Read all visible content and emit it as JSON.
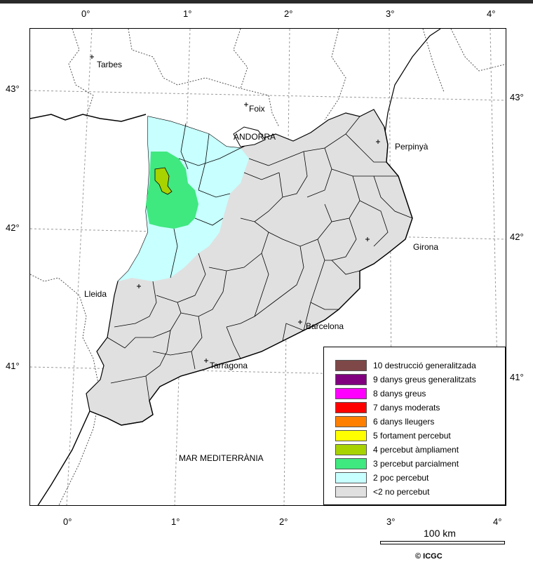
{
  "map": {
    "places": [
      {
        "name": "Tarbes"
      },
      {
        "name": "Foix"
      },
      {
        "name": "ANDORRA"
      },
      {
        "name": "Perpinyà"
      },
      {
        "name": "Lleida"
      },
      {
        "name": "Girona"
      },
      {
        "name": "Barcelona"
      },
      {
        "name": "Tarragona"
      },
      {
        "name": "MAR MEDITERRÀNIA"
      }
    ],
    "top_longitudes": [
      "0°",
      "1°",
      "2°",
      "3°",
      "4°"
    ],
    "bottom_longitudes": [
      "0°",
      "1°",
      "2°",
      "3°",
      "4°"
    ],
    "left_latitudes": [
      "43°",
      "42°",
      "41°"
    ],
    "right_latitudes": [
      "43°",
      "42°",
      "41°"
    ]
  },
  "legend": {
    "items": [
      {
        "label": "10 destrucció generalitzada",
        "color": "#7f4848"
      },
      {
        "label": "9 danys greus generalitzats",
        "color": "#800080"
      },
      {
        "label": "8 danys greus",
        "color": "#ff00ff"
      },
      {
        "label": "7 danys moderats",
        "color": "#ff0000"
      },
      {
        "label": "6 danys lleugers",
        "color": "#ff8000"
      },
      {
        "label": "5 fortament percebut",
        "color": "#ffff00"
      },
      {
        "label": "4 percebut àmpliament",
        "color": "#a8d200"
      },
      {
        "label": "3 percebut parcialment",
        "color": "#40e880"
      },
      {
        "label": "2 poc percebut",
        "color": "#c8ffff"
      },
      {
        "label": "<2 no percebut",
        "color": "#e0e0e0"
      }
    ]
  },
  "scale": {
    "label": "100 km"
  },
  "credit": "© ICGC",
  "colors": {
    "no_percebut": "#e0e0e0",
    "poc_percebut": "#c8ffff",
    "percebut_parcialment": "#40e880",
    "percebut_ampliament": "#a8d200"
  }
}
